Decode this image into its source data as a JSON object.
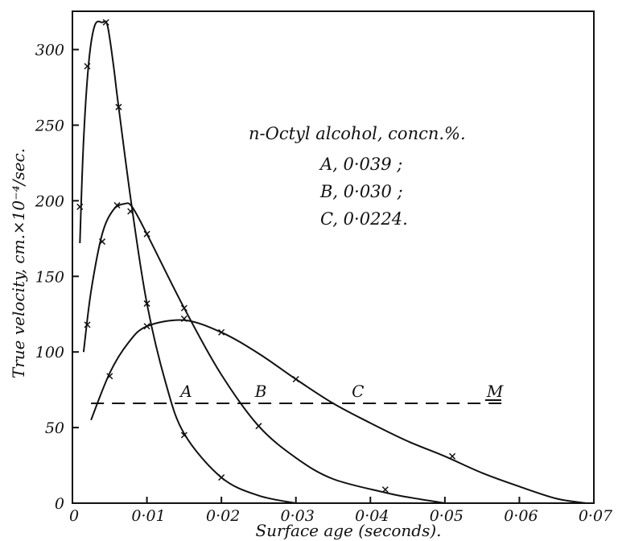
{
  "chart_data": {
    "type": "line",
    "xlabel": "Surface age (seconds).",
    "ylabel": "True velocity, cm.×10⁻⁴/sec.",
    "xlim": [
      0,
      0.07
    ],
    "ylim": [
      0,
      320
    ],
    "x_ticks": [
      0,
      0.01,
      0.02,
      0.03,
      0.04,
      0.05,
      0.06,
      0.07
    ],
    "x_tick_labels": [
      "0",
      "0·01",
      "0·02",
      "0·03",
      "0·04",
      "0·05",
      "0·06",
      "0·07"
    ],
    "y_ticks": [
      0,
      50,
      100,
      150,
      200,
      250,
      300
    ],
    "y_tick_labels": [
      "0",
      "50",
      "100",
      "150",
      "200",
      "250",
      "300"
    ],
    "grid": false,
    "legend": {
      "title": "n-Octyl alcohol, concn.%.",
      "entries": [
        "A, 0·039 ;",
        "B, 0·030 ;",
        "C, 0·0224."
      ]
    },
    "series": [
      {
        "name": "A",
        "label": "A",
        "label_at": [
          0.0145,
          66
        ],
        "curve": [
          [
            0.001,
            172
          ],
          [
            0.0015,
            240
          ],
          [
            0.0022,
            292
          ],
          [
            0.003,
            316
          ],
          [
            0.004,
            318
          ],
          [
            0.0047,
            316
          ],
          [
            0.0055,
            290
          ],
          [
            0.0062,
            262
          ],
          [
            0.008,
            195
          ],
          [
            0.01,
            132
          ],
          [
            0.0125,
            80
          ],
          [
            0.015,
            46
          ],
          [
            0.02,
            17
          ],
          [
            0.025,
            5
          ],
          [
            0.03,
            0
          ]
        ],
        "points": [
          [
            0.001,
            196
          ],
          [
            0.002,
            289
          ],
          [
            0.0045,
            318
          ],
          [
            0.0062,
            262
          ],
          [
            0.0078,
            193
          ],
          [
            0.01,
            132
          ],
          [
            0.015,
            45
          ],
          [
            0.02,
            17
          ]
        ]
      },
      {
        "name": "B",
        "label": "B",
        "label_at": [
          0.0245,
          66
        ],
        "curve": [
          [
            0.0015,
            100
          ],
          [
            0.0025,
            140
          ],
          [
            0.004,
            178
          ],
          [
            0.0055,
            194
          ],
          [
            0.007,
            198
          ],
          [
            0.008,
            196
          ],
          [
            0.01,
            178
          ],
          [
            0.015,
            129
          ],
          [
            0.02,
            85
          ],
          [
            0.025,
            51
          ],
          [
            0.03,
            30
          ],
          [
            0.035,
            16
          ],
          [
            0.042,
            7
          ],
          [
            0.045,
            4
          ],
          [
            0.05,
            0
          ]
        ],
        "points": [
          [
            0.002,
            118
          ],
          [
            0.004,
            173
          ],
          [
            0.006,
            197
          ],
          [
            0.01,
            178
          ],
          [
            0.015,
            129
          ],
          [
            0.025,
            51
          ],
          [
            0.042,
            9
          ]
        ]
      },
      {
        "name": "C",
        "label": "C",
        "label_at": [
          0.0375,
          66
        ],
        "curve": [
          [
            0.0025,
            55
          ],
          [
            0.005,
            86
          ],
          [
            0.0075,
            106
          ],
          [
            0.01,
            117
          ],
          [
            0.015,
            121
          ],
          [
            0.02,
            113
          ],
          [
            0.025,
            99
          ],
          [
            0.03,
            82
          ],
          [
            0.035,
            66
          ],
          [
            0.04,
            53
          ],
          [
            0.045,
            41
          ],
          [
            0.05,
            31
          ],
          [
            0.055,
            20
          ],
          [
            0.06,
            11
          ],
          [
            0.065,
            3
          ],
          [
            0.069,
            0
          ]
        ],
        "points": [
          [
            0.005,
            84
          ],
          [
            0.01,
            117
          ],
          [
            0.015,
            122
          ],
          [
            0.02,
            113
          ],
          [
            0.03,
            82
          ],
          [
            0.051,
            31
          ]
        ]
      }
    ],
    "reference_line": {
      "label": "M",
      "y": 66,
      "x_range": [
        0.0025,
        0.058
      ],
      "style": "dashed"
    }
  }
}
